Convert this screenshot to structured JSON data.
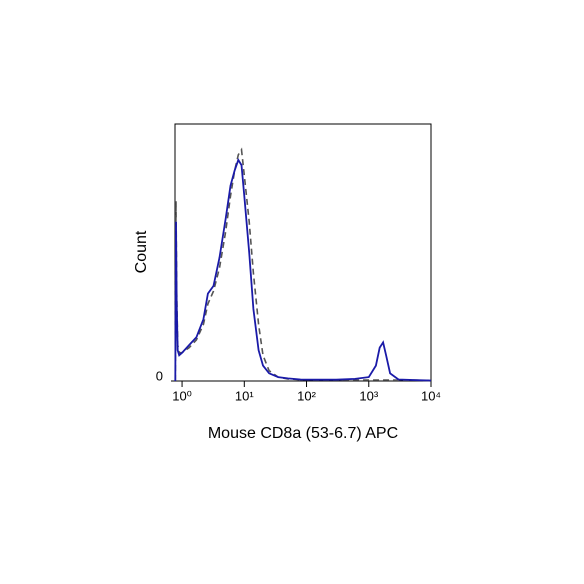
{
  "chart_data": {
    "type": "line",
    "x_label": "Mouse CD8a (53-6.7) APC",
    "y_label": "Count",
    "x": [
      0.78,
      0.8,
      0.82,
      0.85,
      0.9,
      1.0,
      1.3,
      1.7,
      2.2,
      2.6,
      3.2,
      4,
      5,
      6,
      7,
      8,
      9,
      10,
      12,
      14,
      17,
      20,
      25,
      35,
      50,
      80,
      150,
      300,
      600,
      1000,
      1300,
      1500,
      1700,
      1900,
      2200,
      3000,
      6000,
      10000
    ],
    "series": [
      {
        "color": "#555555",
        "dashed": true,
        "values": [
          0,
          70,
          35,
          14,
          11,
          11,
          13,
          16,
          22,
          30,
          35,
          44,
          58,
          72,
          82,
          88,
          90,
          80,
          62,
          42,
          22,
          10,
          4,
          1.5,
          0.8,
          0.5,
          0.4,
          0.4,
          0.4,
          0.4,
          0.4,
          0.4,
          0.4,
          0.4,
          0.4,
          0.3,
          0.3,
          0.2
        ]
      },
      {
        "color": "#1a1aa8",
        "dashed": false,
        "values": [
          0,
          62,
          30,
          12,
          10,
          11,
          14,
          17,
          24,
          34,
          37,
          48,
          63,
          76,
          82,
          86,
          84,
          72,
          50,
          28,
          12,
          6,
          3,
          1.5,
          1,
          0.6,
          0.5,
          0.5,
          0.8,
          1.5,
          6,
          13,
          15,
          10,
          3,
          0.6,
          0.3,
          0.2
        ]
      }
    ],
    "xscale": "log",
    "xlim": [
      0.77,
      10000
    ],
    "xticks": [
      {
        "value": 1,
        "label": "10⁰"
      },
      {
        "value": 10,
        "label": "10¹"
      },
      {
        "value": 100,
        "label": "10²"
      },
      {
        "value": 1000,
        "label": "10³"
      },
      {
        "value": 10000,
        "label": "10⁴"
      }
    ],
    "ylim": [
      0,
      100
    ],
    "yticks": [
      0
    ]
  }
}
